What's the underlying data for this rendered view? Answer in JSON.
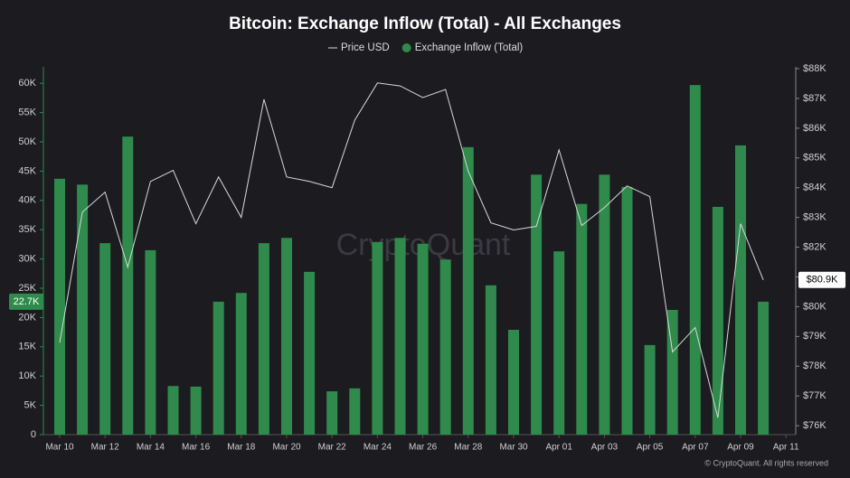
{
  "chart_data": {
    "type": "bar",
    "title": "Bitcoin: Exchange Inflow (Total) - All Exchanges",
    "watermark": "CryptoQuant",
    "credit": "© CryptoQuant. All rights reserved",
    "categories": [
      "Mar 10",
      null,
      "Mar 12",
      null,
      "Mar 14",
      null,
      "Mar 16",
      null,
      "Mar 18",
      null,
      "Mar 20",
      null,
      "Mar 22",
      null,
      "Mar 24",
      null,
      "Mar 26",
      null,
      "Mar 28",
      null,
      "Mar 30",
      null,
      "Apr 01",
      null,
      "Apr 03",
      null,
      "Apr 05",
      null,
      "Apr 07",
      null,
      "Apr 09",
      null,
      "Apr 11"
    ],
    "series": [
      {
        "name": "Price USD",
        "type": "line",
        "axis": "y2",
        "color": "#d9d9d9",
        "values": [
          78790,
          83180,
          83850,
          81330,
          84210,
          84580,
          82790,
          84360,
          83000,
          86970,
          84360,
          84210,
          84000,
          86270,
          87520,
          87420,
          87030,
          87300,
          84550,
          82820,
          82580,
          82700,
          85270,
          82730,
          83330,
          84060,
          83700,
          78480,
          79300,
          76270,
          82790,
          80900,
          null
        ],
        "value_labels": [
          null,
          null,
          null,
          null,
          null,
          null,
          null,
          null,
          null,
          null,
          null,
          null,
          null,
          null,
          null,
          null,
          null,
          null,
          null,
          null,
          null,
          null,
          null,
          null,
          null,
          null,
          null,
          null,
          null,
          null,
          null,
          "$80.9K",
          null
        ]
      },
      {
        "name": "Exchange Inflow (Total)",
        "type": "bar",
        "color": "#2e8b4c",
        "values": [
          43700,
          42700,
          32700,
          50900,
          31500,
          8300,
          8200,
          22700,
          24200,
          32700,
          33600,
          27800,
          7400,
          7900,
          32900,
          33600,
          32600,
          29900,
          49100,
          25500,
          17900,
          44400,
          31300,
          39400,
          44400,
          42300,
          15300,
          21300,
          59700,
          38900,
          49400,
          22700,
          null
        ],
        "value_labels": [
          null,
          null,
          null,
          null,
          null,
          null,
          null,
          null,
          null,
          null,
          null,
          null,
          null,
          null,
          null,
          null,
          null,
          null,
          null,
          null,
          null,
          null,
          null,
          null,
          null,
          null,
          null,
          null,
          null,
          null,
          null,
          "22.7K",
          null
        ]
      }
    ],
    "ylim": [
      0,
      62500
    ],
    "yticks": [
      0,
      {
        "value": 5000,
        "label": "5K"
      },
      {
        "value": 10000,
        "label": "10K"
      },
      {
        "value": 15000,
        "label": "15K"
      },
      {
        "value": 20000,
        "label": "20K"
      },
      {
        "value": 25000,
        "label": "25K"
      },
      {
        "value": 30000,
        "label": "30K"
      },
      {
        "value": 35000,
        "label": "35K"
      },
      {
        "value": 40000,
        "label": "40K"
      },
      {
        "value": 45000,
        "label": "45K"
      },
      {
        "value": 50000,
        "label": "50K"
      },
      {
        "value": 55000,
        "label": "55K"
      },
      {
        "value": 60000,
        "label": "60K"
      }
    ],
    "y2lim": [
      75700,
      88000
    ],
    "y2ticks": [
      {
        "value": 76000,
        "label": "$76K"
      },
      {
        "value": 77000,
        "label": "$77K"
      },
      {
        "value": 78000,
        "label": "$78K"
      },
      {
        "value": 79000,
        "label": "$79K"
      },
      {
        "value": 80000,
        "label": "$80K"
      },
      {
        "value": 81000,
        "label": "$81K"
      },
      {
        "value": 82000,
        "label": "$82K"
      },
      {
        "value": 83000,
        "label": "$83K"
      },
      {
        "value": 84000,
        "label": "$84K"
      },
      {
        "value": 85000,
        "label": "$85K"
      },
      {
        "value": 86000,
        "label": "$86K"
      },
      {
        "value": 87000,
        "label": "$87K"
      },
      {
        "value": 88000,
        "label": "$88K"
      }
    ],
    "grid": false
  }
}
